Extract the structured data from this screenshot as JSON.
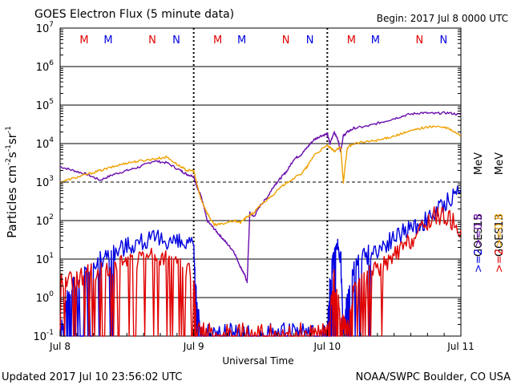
{
  "header": {
    "title": "GOES Electron Flux (5 minute data)",
    "begin": "Begin: 2017 Jul 8 0000 UTC"
  },
  "footer": {
    "updated": "Updated 2017 Jul 10 23:56:02 UTC",
    "source": "NOAA/SWPC Boulder, CO USA"
  },
  "chart_data": {
    "type": "line",
    "title": "GOES Electron Flux (5 minute data)",
    "xlabel": "Universal Time",
    "ylabel_base": "Particles cm",
    "ylabel_sup1": "-2",
    "ylabel_mid1": "s",
    "ylabel_sup2": "-1",
    "ylabel_mid2": "sr",
    "ylabel_sup3": "-1",
    "y_scale": "log",
    "ylim": [
      0.1,
      10000000
    ],
    "xlim": [
      0,
      3
    ],
    "x_ticks": [
      {
        "x": 0,
        "label": "Jul 8"
      },
      {
        "x": 1,
        "label": "Jul 9"
      },
      {
        "x": 2,
        "label": "Jul 10"
      },
      {
        "x": 3,
        "label": "Jul 11"
      }
    ],
    "y_ticks": [
      {
        "exp": -1,
        "base": "10",
        "sup": "-1"
      },
      {
        "exp": 0,
        "base": "10",
        "sup": "0"
      },
      {
        "exp": 1,
        "base": "10",
        "sup": "1"
      },
      {
        "exp": 2,
        "base": "10",
        "sup": "2"
      },
      {
        "exp": 3,
        "base": "10",
        "sup": "3"
      },
      {
        "exp": 4,
        "base": "10",
        "sup": "4"
      },
      {
        "exp": 5,
        "base": "10",
        "sup": "5"
      },
      {
        "exp": 6,
        "base": "10",
        "sup": "6"
      },
      {
        "exp": 7,
        "base": "10",
        "sup": "7"
      }
    ],
    "grid": {
      "solid_exps": [
        0,
        1,
        2,
        4,
        5,
        6
      ],
      "dashed_exps": [
        3
      ]
    },
    "day_dividers": [
      1,
      2
    ],
    "markers": [
      {
        "x": 0.18,
        "text": "M",
        "color": "#e00000"
      },
      {
        "x": 0.36,
        "text": "M",
        "color": "#0000e0"
      },
      {
        "x": 0.69,
        "text": "N",
        "color": "#e00000"
      },
      {
        "x": 0.87,
        "text": "N",
        "color": "#0000e0"
      },
      {
        "x": 1.18,
        "text": "M",
        "color": "#e00000"
      },
      {
        "x": 1.36,
        "text": "M",
        "color": "#0000e0"
      },
      {
        "x": 1.69,
        "text": "N",
        "color": "#e00000"
      },
      {
        "x": 1.87,
        "text": "N",
        "color": "#0000e0"
      },
      {
        "x": 2.18,
        "text": "M",
        "color": "#e00000"
      },
      {
        "x": 2.36,
        "text": "M",
        "color": "#0000e0"
      },
      {
        "x": 2.69,
        "text": "N",
        "color": "#e00000"
      },
      {
        "x": 2.87,
        "text": "N",
        "color": "#0000e0"
      }
    ],
    "legend": {
      "mev": "MeV",
      "gte08": ">=0.8",
      "gte2": ">=2",
      "goes15": "GOES15",
      "goes13": "GOES13"
    },
    "series": [
      {
        "name": "GOES15 >=0.8 MeV",
        "color": "#6a0dad",
        "x": [
          0,
          0.1,
          0.2,
          0.3,
          0.4,
          0.5,
          0.6,
          0.7,
          0.8,
          0.9,
          0.95,
          1.0,
          1.02,
          1.05,
          1.08,
          1.1,
          1.15,
          1.2,
          1.25,
          1.3,
          1.35,
          1.38,
          1.4,
          1.42,
          1.45,
          1.5,
          1.55,
          1.6,
          1.65,
          1.7,
          1.75,
          1.8,
          1.85,
          1.9,
          1.95,
          2.0,
          2.02,
          2.05,
          2.08,
          2.1,
          2.12,
          2.15,
          2.2,
          2.3,
          2.4,
          2.5,
          2.6,
          2.7,
          2.8,
          2.9,
          3.0
        ],
        "y": [
          3.4,
          3.3,
          3.2,
          3.05,
          3.2,
          3.3,
          3.4,
          3.55,
          3.5,
          3.3,
          3.2,
          3.15,
          2.9,
          2.7,
          2.3,
          2.0,
          1.8,
          1.6,
          1.4,
          1.2,
          0.8,
          0.6,
          0.4,
          2.2,
          2.1,
          2.4,
          2.6,
          2.9,
          3.1,
          3.3,
          3.6,
          3.7,
          3.9,
          4.1,
          4.2,
          4.25,
          4.0,
          4.3,
          4.1,
          3.8,
          4.2,
          4.3,
          4.4,
          4.45,
          4.55,
          4.65,
          4.75,
          4.8,
          4.78,
          4.8,
          4.75
        ]
      },
      {
        "name": "GOES13 >=0.8 MeV",
        "color": "#f0a000",
        "x": [
          0,
          0.1,
          0.2,
          0.3,
          0.4,
          0.5,
          0.6,
          0.7,
          0.8,
          0.9,
          0.95,
          1.0,
          1.02,
          1.05,
          1.1,
          1.15,
          1.2,
          1.3,
          1.35,
          1.4,
          1.45,
          1.5,
          1.6,
          1.7,
          1.8,
          1.85,
          1.9,
          2.0,
          2.05,
          2.1,
          2.12,
          2.15,
          2.2,
          2.3,
          2.4,
          2.5,
          2.6,
          2.7,
          2.8,
          2.9,
          3.0
        ],
        "y": [
          3.0,
          3.1,
          3.2,
          3.3,
          3.4,
          3.5,
          3.55,
          3.6,
          3.65,
          3.4,
          3.3,
          3.3,
          3.0,
          2.6,
          2.2,
          1.9,
          1.9,
          2.0,
          1.95,
          2.1,
          2.2,
          2.4,
          2.7,
          3.0,
          3.2,
          3.4,
          3.7,
          3.95,
          3.8,
          3.9,
          3.0,
          3.9,
          4.0,
          4.05,
          4.1,
          4.2,
          4.3,
          4.4,
          4.45,
          4.4,
          4.2
        ]
      },
      {
        "name": "GOES15 >=2 MeV",
        "color": "#0000e0",
        "x": [
          0,
          0.05,
          0.1,
          0.2,
          0.3,
          0.4,
          0.5,
          0.6,
          0.7,
          0.8,
          0.9,
          1.0,
          1.02,
          1.05,
          1.1,
          1.2,
          1.3,
          1.4,
          1.5,
          1.6,
          1.7,
          1.8,
          1.9,
          2.0,
          2.02,
          2.05,
          2.08,
          2.1,
          2.12,
          2.15,
          2.2,
          2.3,
          2.4,
          2.5,
          2.6,
          2.7,
          2.8,
          2.9,
          3.0
        ],
        "y": [
          -0.9,
          0.0,
          0.3,
          0.7,
          1.0,
          1.2,
          1.35,
          1.45,
          1.5,
          1.5,
          1.4,
          1.3,
          0.0,
          -0.9,
          -0.9,
          -0.9,
          -0.9,
          -0.9,
          -0.9,
          -0.9,
          -0.9,
          -0.9,
          -0.9,
          -0.9,
          0.6,
          1.0,
          1.3,
          1.1,
          -0.9,
          0.0,
          0.9,
          1.1,
          1.3,
          1.55,
          1.75,
          1.9,
          2.15,
          2.5,
          2.8
        ]
      },
      {
        "name": "GOES13 >=2 MeV",
        "color": "#e00000",
        "x": [
          0,
          0.1,
          0.2,
          0.3,
          0.4,
          0.5,
          0.6,
          0.7,
          0.8,
          0.9,
          1.0,
          1.02,
          1.1,
          1.2,
          1.3,
          1.4,
          1.5,
          1.6,
          1.7,
          1.8,
          1.9,
          2.0,
          2.05,
          2.1,
          2.15,
          2.2,
          2.3,
          2.4,
          2.5,
          2.6,
          2.7,
          2.8,
          2.9,
          3.0
        ],
        "y": [
          0.5,
          0.4,
          0.6,
          0.7,
          0.8,
          0.9,
          1.0,
          1.05,
          1.0,
          0.8,
          0.6,
          -0.9,
          -0.9,
          -0.9,
          -0.9,
          -0.9,
          -0.9,
          -0.9,
          -0.9,
          -0.9,
          -0.9,
          -0.9,
          0.5,
          -0.5,
          -0.9,
          0.3,
          0.6,
          0.8,
          1.1,
          1.4,
          1.75,
          2.15,
          2.1,
          1.75
        ]
      }
    ]
  }
}
